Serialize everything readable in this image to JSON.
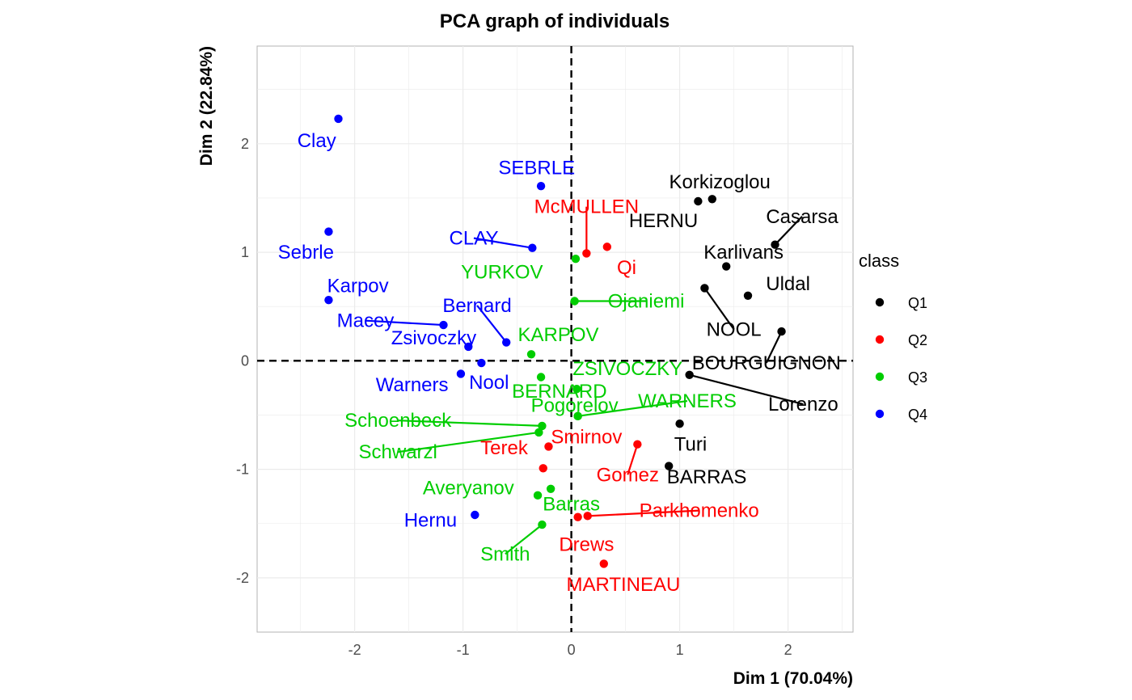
{
  "chart_data": {
    "type": "scatter",
    "title": "PCA graph of individuals",
    "xlabel": "Dim 1 (70.04%)",
    "ylabel": "Dim 2 (22.84%)",
    "xlim": [
      -2.9,
      2.6
    ],
    "ylim": [
      -2.5,
      2.9
    ],
    "xticks": [
      -2,
      -1,
      0,
      1,
      2
    ],
    "yticks": [
      -2,
      -1,
      0,
      1,
      2
    ],
    "xtick_labels": [
      "-2",
      "-1",
      "0",
      "1",
      "2"
    ],
    "ytick_labels": [
      "-2",
      "-1",
      "0",
      "1",
      "2"
    ],
    "grid": true,
    "reference_lines": {
      "x": 0,
      "y": 0,
      "style": "dashed"
    },
    "legend": {
      "title": "class",
      "position": "right",
      "entries": [
        {
          "name": "Q1",
          "color": "#000000"
        },
        {
          "name": "Q2",
          "color": "#ff0000"
        },
        {
          "name": "Q3",
          "color": "#00cd00"
        },
        {
          "name": "Q4",
          "color": "#0000ff"
        }
      ]
    },
    "points": [
      {
        "label": "Clay",
        "class": "Q4",
        "x": -2.15,
        "y": 2.23,
        "lx": -2.35,
        "ly": 2.03
      },
      {
        "label": "Sebrle",
        "class": "Q4",
        "x": -2.24,
        "y": 1.19,
        "lx": -2.45,
        "ly": 1.0
      },
      {
        "label": "Karpov",
        "class": "Q4",
        "x": -2.24,
        "y": 0.56,
        "lx": -1.97,
        "ly": 0.69
      },
      {
        "label": "Macey",
        "class": "Q4",
        "x": -1.18,
        "y": 0.33,
        "lx": -1.9,
        "ly": 0.37,
        "line": true
      },
      {
        "label": "Zsivoczky",
        "class": "Q4",
        "x": -0.95,
        "y": 0.13,
        "lx": -1.27,
        "ly": 0.21
      },
      {
        "label": "Bernard",
        "class": "Q4",
        "x": -0.6,
        "y": 0.17,
        "lx": -0.87,
        "ly": 0.51,
        "line": true
      },
      {
        "label": "SEBRLE",
        "class": "Q4",
        "x": -0.28,
        "y": 1.61,
        "lx": -0.32,
        "ly": 1.78
      },
      {
        "label": "CLAY",
        "class": "Q4",
        "x": -0.36,
        "y": 1.04,
        "lx": -0.9,
        "ly": 1.13,
        "line": true
      },
      {
        "label": "Nool",
        "class": "Q4",
        "x": -0.83,
        "y": -0.02,
        "lx": -0.76,
        "ly": -0.2
      },
      {
        "label": "Warners",
        "class": "Q4",
        "x": -1.02,
        "y": -0.12,
        "lx": -1.47,
        "ly": -0.22
      },
      {
        "label": "Hernu",
        "class": "Q4",
        "x": -0.89,
        "y": -1.42,
        "lx": -1.3,
        "ly": -1.47
      },
      {
        "label": "YURKOV",
        "class": "Q3",
        "x": 0.04,
        "y": 0.94,
        "lx": -0.64,
        "ly": 0.82
      },
      {
        "label": "Ojaniemi",
        "class": "Q3",
        "x": 0.03,
        "y": 0.55,
        "lx": 0.69,
        "ly": 0.55,
        "line": true
      },
      {
        "label": "KARPOV",
        "class": "Q3",
        "x": -0.37,
        "y": 0.06,
        "lx": -0.12,
        "ly": 0.24
      },
      {
        "label": "BERNARD",
        "class": "Q3",
        "x": -0.28,
        "y": -0.15,
        "lx": -0.11,
        "ly": -0.28
      },
      {
        "label": "ZSIVOCZKY",
        "class": "Q3",
        "x": 0.05,
        "y": -0.26,
        "lx": 0.52,
        "ly": -0.07
      },
      {
        "label": "Pogorelov",
        "class": "Q3",
        "x": 0.06,
        "y": -0.51,
        "lx": 0.03,
        "ly": -0.41
      },
      {
        "label": "WARNERS",
        "class": "Q3",
        "x": 0.06,
        "y": -0.51,
        "lx": 1.07,
        "ly": -0.37,
        "line": true
      },
      {
        "label": "Schoenbeck",
        "class": "Q3",
        "x": -0.27,
        "y": -0.6,
        "lx": -1.6,
        "ly": -0.55,
        "line": true
      },
      {
        "label": "Schwarzl",
        "class": "Q3",
        "x": -0.3,
        "y": -0.66,
        "lx": -1.6,
        "ly": -0.84,
        "line": true
      },
      {
        "label": "Averyanov",
        "class": "Q3",
        "x": -0.31,
        "y": -1.24,
        "lx": -0.95,
        "ly": -1.17
      },
      {
        "label": "Barras",
        "class": "Q3",
        "x": -0.19,
        "y": -1.18,
        "lx": 0.0,
        "ly": -1.32
      },
      {
        "label": "Smith",
        "class": "Q3",
        "x": -0.27,
        "y": -1.51,
        "lx": -0.61,
        "ly": -1.78,
        "line": true
      },
      {
        "label": "McMULLEN",
        "class": "Q2",
        "x": 0.14,
        "y": 0.99,
        "lx": 0.14,
        "ly": 1.42,
        "line": true
      },
      {
        "label": "Qi",
        "class": "Q2",
        "x": 0.33,
        "y": 1.05,
        "lx": 0.51,
        "ly": 0.86
      },
      {
        "label": "Terek",
        "class": "Q2",
        "x": -0.21,
        "y": -0.79,
        "lx": -0.62,
        "ly": -0.8
      },
      {
        "label": "Smirnov",
        "class": "Q2",
        "x": -0.26,
        "y": -0.99,
        "lx": 0.14,
        "ly": -0.7
      },
      {
        "label": "Gomez",
        "class": "Q2",
        "x": 0.61,
        "y": -0.77,
        "lx": 0.52,
        "ly": -1.05,
        "line": true
      },
      {
        "label": "Parkhomenko",
        "class": "Q2",
        "x": 0.15,
        "y": -1.43,
        "lx": 1.18,
        "ly": -1.38,
        "line": true
      },
      {
        "label": "Drews",
        "class": "Q2",
        "x": 0.06,
        "y": -1.44,
        "lx": 0.14,
        "ly": -1.69
      },
      {
        "label": "MARTINEAU",
        "class": "Q2",
        "x": 0.3,
        "y": -1.87,
        "lx": 0.48,
        "ly": -2.06
      },
      {
        "label": "Korkizoglou",
        "class": "Q1",
        "x": 1.3,
        "y": 1.49,
        "lx": 1.37,
        "ly": 1.65
      },
      {
        "label": "HERNU",
        "class": "Q1",
        "x": 1.17,
        "y": 1.47,
        "lx": 0.85,
        "ly": 1.29
      },
      {
        "label": "Casarsa",
        "class": "Q1",
        "x": 1.88,
        "y": 1.07,
        "lx": 2.13,
        "ly": 1.33,
        "line": true
      },
      {
        "label": "Karlivans",
        "class": "Q1",
        "x": 1.43,
        "y": 0.87,
        "lx": 1.59,
        "ly": 1.0
      },
      {
        "label": "Uldal",
        "class": "Q1",
        "x": 1.63,
        "y": 0.6,
        "lx": 2.0,
        "ly": 0.71
      },
      {
        "label": "NOOL",
        "class": "Q1",
        "x": 1.23,
        "y": 0.67,
        "lx": 1.5,
        "ly": 0.29,
        "line": true
      },
      {
        "label": "BOURGUIGNON",
        "class": "Q1",
        "x": 1.94,
        "y": 0.27,
        "lx": 1.8,
        "ly": -0.02,
        "line": true
      },
      {
        "label": "Lorenzo",
        "class": "Q1",
        "x": 1.09,
        "y": -0.13,
        "lx": 2.14,
        "ly": -0.4,
        "line": true
      },
      {
        "label": "Turi",
        "class": "Q1",
        "x": 1.0,
        "y": -0.58,
        "lx": 1.1,
        "ly": -0.77
      },
      {
        "label": "BARRAS",
        "class": "Q1",
        "x": 0.9,
        "y": -0.97,
        "lx": 1.25,
        "ly": -1.07
      }
    ]
  }
}
